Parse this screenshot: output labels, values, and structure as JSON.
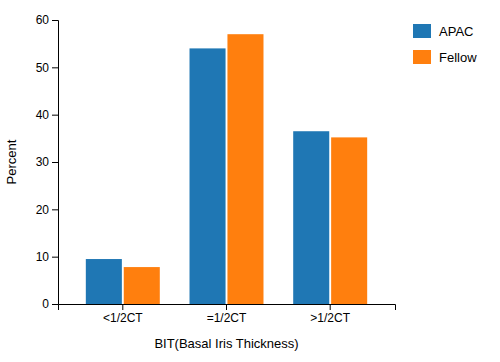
{
  "chart_data": {
    "type": "bar",
    "categories": [
      "<1/2CT",
      "=1/2CT",
      ">1/2CT"
    ],
    "series": [
      {
        "name": "APAC",
        "values": [
          9.5,
          54.0,
          36.5
        ]
      },
      {
        "name": "Fellow",
        "values": [
          7.8,
          57.0,
          35.2
        ]
      }
    ],
    "xlabel": "BIT(Basal Iris Thickness)",
    "ylabel": "Percent",
    "ylim": [
      0,
      60
    ],
    "yticks": [
      0,
      10,
      20,
      30,
      40,
      50,
      60
    ],
    "grid": false,
    "legend": "right"
  }
}
